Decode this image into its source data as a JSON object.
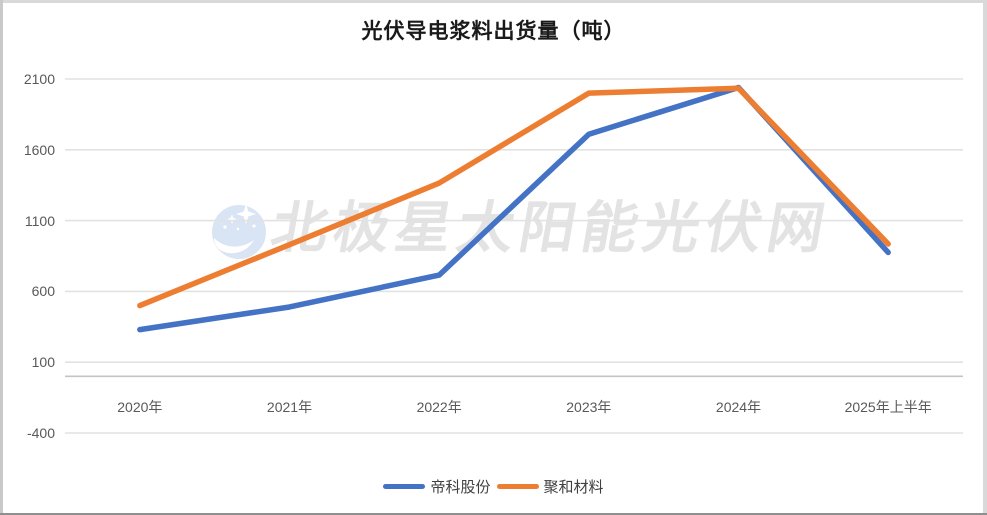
{
  "title": "光伏导电浆料出货量（吨）",
  "watermark": {
    "text": "北极星太阳能光伏网",
    "icon": "polaris-star-moon-logo"
  },
  "colors": {
    "series1_blue": "#4472C4",
    "series2_orange": "#ED7D31",
    "gridline": "#E2E2E2",
    "zero_axis_line": "#C4C4C4",
    "tick_text": "#595959",
    "title_text": "#1A1A1A",
    "watermark_text": "#E3E3E3",
    "watermark_icon_blue": "#D9E4F4"
  },
  "chart_data": {
    "type": "line",
    "title": "光伏导电浆料出货量（吨）",
    "categories": [
      "2020年",
      "2021年",
      "2022年",
      "2023年",
      "2024年",
      "2025年上半年"
    ],
    "series": [
      {
        "name": "帝科股份",
        "color": "#4472C4",
        "values": [
          330,
          490,
          715,
          1710,
          2040,
          875
        ]
      },
      {
        "name": "聚和材料",
        "color": "#ED7D31",
        "values": [
          500,
          930,
          1365,
          2000,
          2035,
          935
        ]
      }
    ],
    "y_ticks": [
      2100,
      1600,
      1100,
      600,
      100,
      -400
    ],
    "ylim": [
      -400,
      2100
    ],
    "xlabel": "",
    "ylabel": "",
    "grid": "horizontal",
    "legend_position": "bottom",
    "zero_axis": 0
  }
}
